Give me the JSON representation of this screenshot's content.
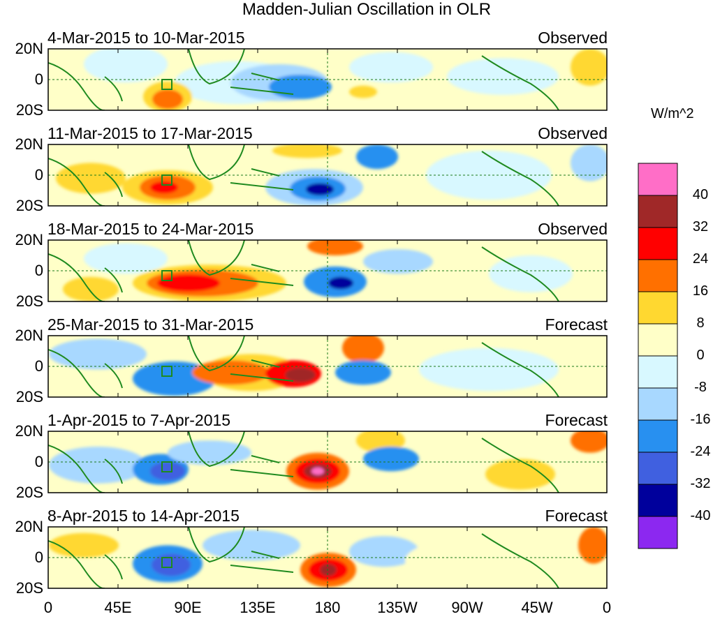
{
  "title": "Madden-Julian Oscillation in OLR",
  "units": "W/m^2",
  "lat_labels": [
    "20N",
    "0",
    "20S"
  ],
  "lon_labels": [
    "0",
    "45E",
    "90E",
    "135E",
    "180",
    "135W",
    "90W",
    "45W",
    "0"
  ],
  "colorbar": {
    "levels": [
      "40",
      "32",
      "24",
      "16",
      "8",
      "0",
      "-8",
      "-16",
      "-24",
      "-32",
      "-40"
    ],
    "colors": [
      "#ff6ec7",
      "#a02828",
      "#ff0000",
      "#ff7000",
      "#ffd830",
      "#ffffc8",
      "#d8f8ff",
      "#a8d8ff",
      "#2890f0",
      "#4060e0",
      "#00009c",
      "#8c28f0"
    ]
  },
  "panels": [
    {
      "date": "4-Mar-2015 to 10-Mar-2015",
      "kind": "Observed"
    },
    {
      "date": "11-Mar-2015 to 17-Mar-2015",
      "kind": "Observed"
    },
    {
      "date": "18-Mar-2015 to 24-Mar-2015",
      "kind": "Observed"
    },
    {
      "date": "25-Mar-2015 to 31-Mar-2015",
      "kind": "Forecast"
    },
    {
      "date": "1-Apr-2015 to 7-Apr-2015",
      "kind": "Forecast"
    },
    {
      "date": "8-Apr-2015 to 14-Apr-2015",
      "kind": "Forecast"
    }
  ]
}
